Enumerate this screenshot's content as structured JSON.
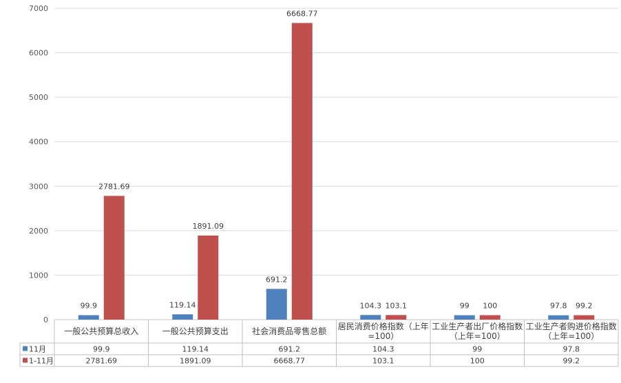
{
  "chart_data": {
    "type": "bar",
    "categories": [
      [
        "一般公共预算总收入"
      ],
      [
        "一般公共预算支出"
      ],
      [
        "社会消费品零售总额"
      ],
      [
        "居民消费价格指数（上年",
        "=100）"
      ],
      [
        "工业生产者出厂价格指数",
        "（上年=100）"
      ],
      [
        "工业生产者购进价格指数",
        "（上年=100）"
      ]
    ],
    "series": [
      {
        "name": "11月",
        "color": "#4f81bd",
        "values": [
          99.9,
          119.14,
          691.2,
          104.3,
          99,
          97.8
        ],
        "labels": [
          "99.9",
          "119.14",
          "691.2",
          "104.3",
          "99",
          "97.8"
        ]
      },
      {
        "name": "1-11月",
        "color": "#c0504d",
        "values": [
          2781.69,
          1891.09,
          6668.77,
          103.1,
          100,
          99.2
        ],
        "labels": [
          "2781.69",
          "1891.09",
          "6668.77",
          "103.1",
          "100",
          "99.2"
        ]
      }
    ],
    "ylim": [
      0,
      7000
    ],
    "yticks": [
      0,
      1000,
      2000,
      3000,
      4000,
      5000,
      6000,
      7000
    ],
    "grid": true,
    "legend": "data-table-left",
    "data_table": true
  }
}
